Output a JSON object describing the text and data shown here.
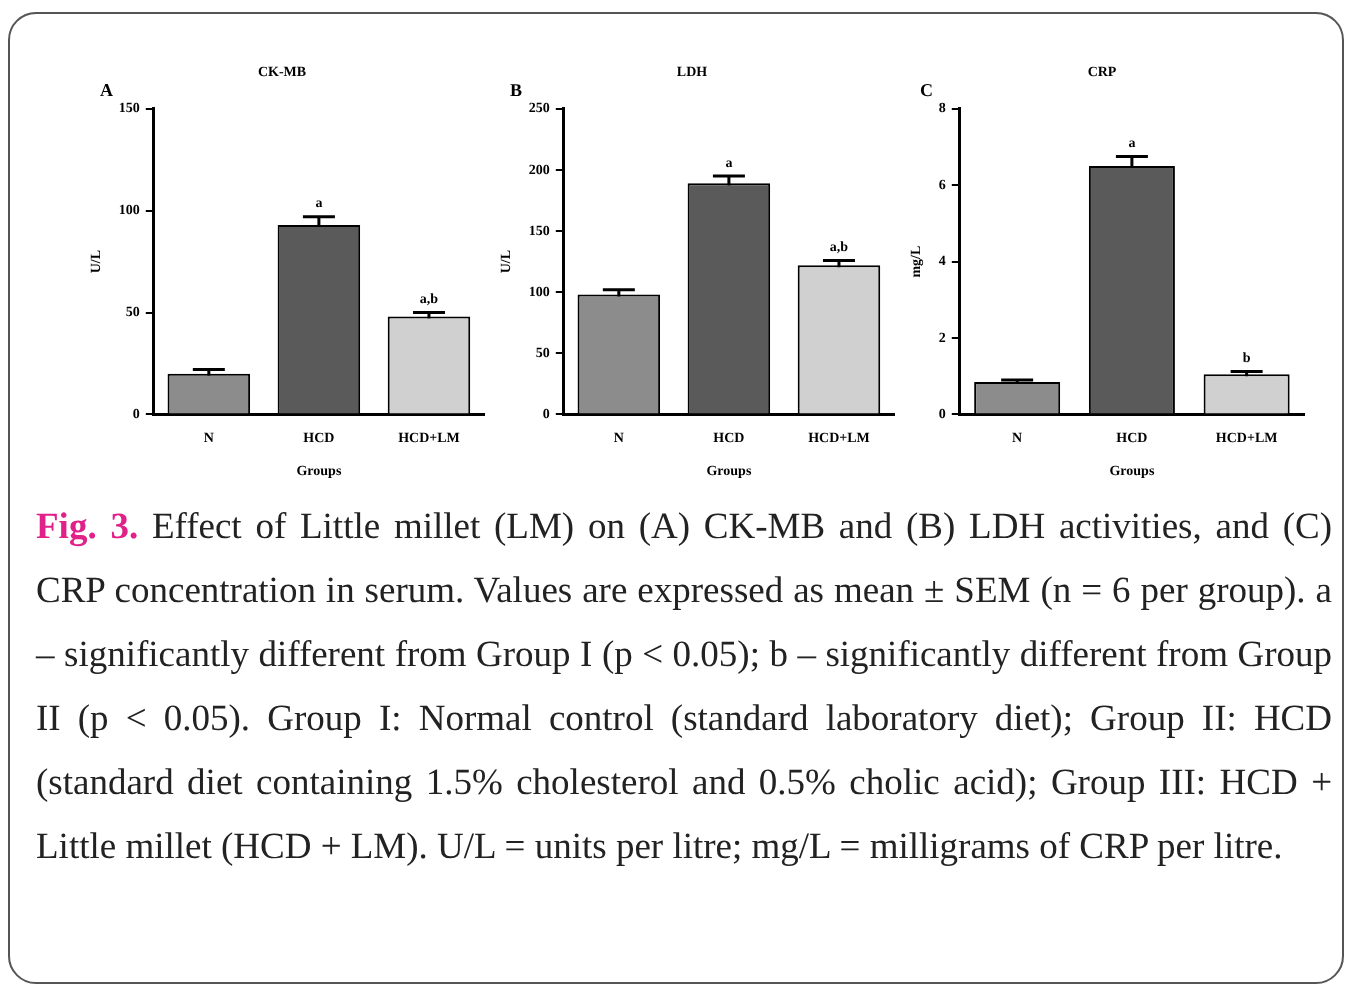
{
  "chart_data": [
    {
      "type": "bar",
      "title": "CK-MB",
      "xlabel": "Groups",
      "ylabel": "U/L",
      "categories": [
        "N",
        "HCD",
        "HCD+LM"
      ],
      "values": [
        20,
        93,
        48
      ],
      "errors": [
        2,
        4,
        2
      ],
      "colors": [
        "#8c8c8c",
        "#5a5a5a",
        "#d0d0d0"
      ],
      "ylim": [
        0,
        150
      ],
      "yticks": [
        0,
        50,
        100,
        150
      ],
      "grid": false,
      "legend": false,
      "annotations": [
        "A",
        {
          "text": "a",
          "x": "HCD",
          "y": 97
        },
        {
          "text": "a,b",
          "x": "HCD+LM",
          "y": 50
        }
      ]
    },
    {
      "type": "bar",
      "title": "LDH",
      "xlabel": "Groups",
      "ylabel": "U/L",
      "categories": [
        "N",
        "HCD",
        "HCD+LM"
      ],
      "values": [
        98,
        189,
        122
      ],
      "errors": [
        4,
        6,
        4
      ],
      "colors": [
        "#8c8c8c",
        "#5a5a5a",
        "#d0d0d0"
      ],
      "ylim": [
        0,
        250
      ],
      "yticks": [
        0,
        50,
        100,
        150,
        200,
        250
      ],
      "grid": false,
      "legend": false,
      "annotations": [
        "B",
        {
          "text": "a",
          "x": "HCD",
          "y": 195
        },
        {
          "text": "a,b",
          "x": "HCD+LM",
          "y": 126
        }
      ]
    },
    {
      "type": "bar",
      "title": "CRP",
      "xlabel": "Groups",
      "ylabel": "mg/L",
      "categories": [
        "N",
        "HCD",
        "HCD+LM"
      ],
      "values": [
        0.85,
        6.5,
        1.05
      ],
      "errors": [
        0.05,
        0.25,
        0.07
      ],
      "colors": [
        "#8c8c8c",
        "#5a5a5a",
        "#d0d0d0"
      ],
      "ylim": [
        0,
        8
      ],
      "yticks": [
        0,
        2,
        4,
        6,
        8
      ],
      "grid": false,
      "legend": false,
      "annotations": [
        "C",
        {
          "text": "a",
          "x": "HCD",
          "y": 6.75
        },
        {
          "text": "b",
          "x": "HCD+LM",
          "y": 1.12
        }
      ]
    },
    {
      "type": "other",
      "annotations": [
        "Fig. 3.",
        "Effect of Little millet (LM) on (A) CK-MB and (B) LDH activities, and (C) CRP concentration in serum. Values are expressed as mean ± SEM (n = 6 per group). a – significantly different from Group I (p < 0.05); b – significantly different from Group II (p < 0.05). Group I: Normal control (standard laboratory diet); Group II: HCD (standard diet containing 1.5% cholesterol and 0.5% cholic acid); Group III: HCD + Little millet (HCD + LM). U/L = units per litre; mg/L = milligrams of CRP per litre."
      ]
    }
  ]
}
